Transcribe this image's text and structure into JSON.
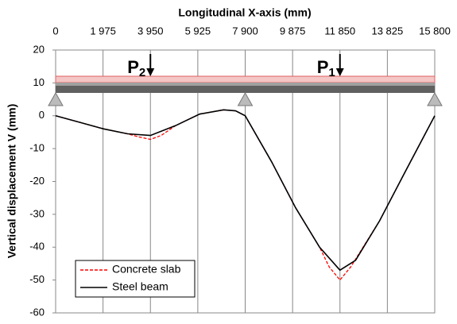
{
  "chart_data": {
    "type": "line",
    "xlabel": "Longitudinal X-axis (mm)",
    "ylabel": "Vertical displacement V (mm)",
    "xlim": [
      0,
      15800
    ],
    "xticks": [
      0,
      {
        "value": 1975,
        "label": "1 975"
      },
      {
        "value": 3950,
        "label": "3 950"
      },
      {
        "value": 5925,
        "label": "5 925"
      },
      {
        "value": 7900,
        "label": "7 900"
      },
      {
        "value": 9875,
        "label": "9 875"
      },
      {
        "value": 11850,
        "label": "11 850"
      },
      {
        "value": 13825,
        "label": "13 825"
      },
      {
        "value": 15800,
        "label": "15 800"
      }
    ],
    "ylim": [
      -60,
      20
    ],
    "yticks": [
      20,
      10,
      0,
      -10,
      -20,
      -30,
      -40,
      -50,
      -60
    ],
    "grid": true,
    "legend": "lower left",
    "annotations": [
      {
        "text": "P",
        "sub": "2",
        "x": 3950
      },
      {
        "text": "P",
        "sub": "1",
        "x": 11850
      }
    ],
    "series": [
      {
        "name": "Concrete slab",
        "color": "#ff0000",
        "dashed": true,
        "x": [
          0,
          1000,
          2000,
          3000,
          3500,
          3950,
          4400,
          5000,
          6000,
          7000,
          7500,
          7900,
          9000,
          10000,
          11000,
          11400,
          11850,
          12300,
          13500,
          14500,
          15800
        ],
        "values": [
          0,
          -2,
          -4,
          -5.5,
          -6.5,
          -7.2,
          -6,
          -3,
          0.5,
          1.8,
          1.5,
          0,
          -14,
          -28,
          -40,
          -46,
          -50,
          -46,
          -32,
          -18,
          0
        ]
      },
      {
        "name": "Steel beam",
        "color": "#000000",
        "dashed": false,
        "x": [
          0,
          1000,
          2000,
          3000,
          3950,
          5000,
          6000,
          7000,
          7500,
          7900,
          9000,
          10000,
          11000,
          11850,
          12500,
          13500,
          14500,
          15800
        ],
        "values": [
          0,
          -2,
          -4,
          -5.5,
          -6,
          -3,
          0.5,
          1.8,
          1.5,
          0,
          -14,
          -28,
          -40,
          -47,
          -44,
          -32,
          -18,
          0
        ]
      }
    ]
  }
}
